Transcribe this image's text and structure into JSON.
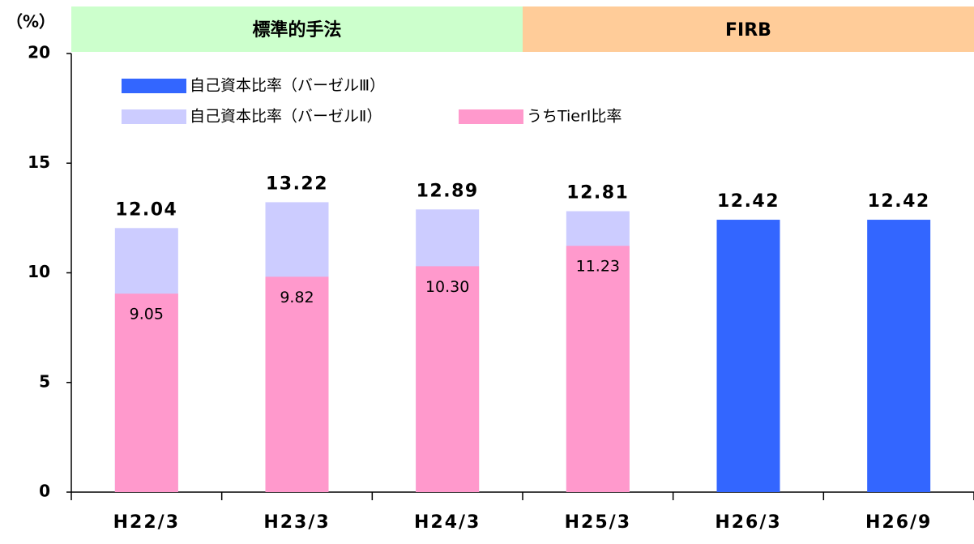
{
  "chart_data": {
    "type": "bar",
    "ylabel": "（%）",
    "categories": [
      "H22/3",
      "H23/3",
      "H24/3",
      "H25/3",
      "H26/3",
      "H26/9"
    ],
    "regions": [
      {
        "label": "標準的手法",
        "from": "H22/3",
        "to": "H24/3",
        "color": "#ccffcc"
      },
      {
        "label": "FIRB",
        "from": "H25/3",
        "to": "H26/9",
        "color": "#ffcc99"
      }
    ],
    "series": [
      {
        "name": "自己資本比率（バーゼルⅢ）",
        "color": "#3366ff",
        "values": [
          null,
          null,
          null,
          null,
          12.42,
          12.42
        ]
      },
      {
        "name": "自己資本比率（バーゼルⅡ）",
        "color": "#ccccff",
        "values": [
          12.04,
          13.22,
          12.89,
          12.81,
          null,
          null
        ]
      },
      {
        "name": "うちTierⅠ比率",
        "color": "#ff99cc",
        "values": [
          9.05,
          9.82,
          10.3,
          11.23,
          null,
          null
        ],
        "value_labels": [
          "9.05",
          "9.82",
          "10.30",
          "11.23",
          null,
          null
        ]
      }
    ],
    "ylim": [
      0,
      20
    ],
    "yticks": [
      0,
      5,
      10,
      15,
      20
    ],
    "legend": "upper left"
  }
}
